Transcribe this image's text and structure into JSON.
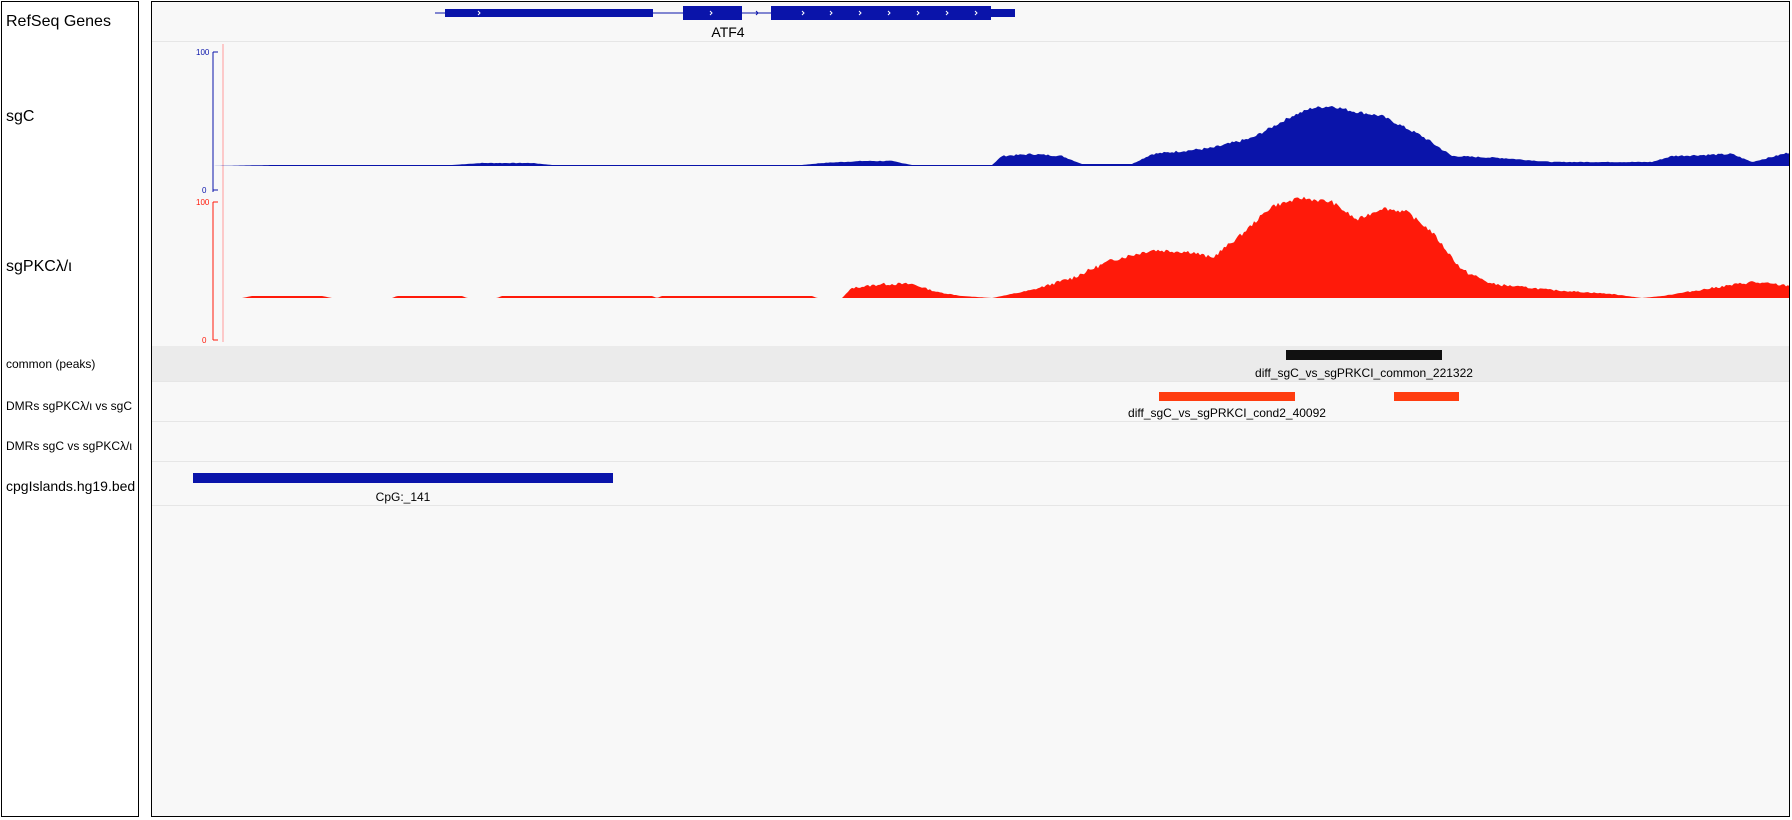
{
  "tracks": {
    "refseq": {
      "name": "RefSeq Genes",
      "gene_label": "ATF4"
    },
    "sgC": {
      "name": "sgC",
      "scale_max": "100",
      "scale_min": "0",
      "color": "#0a14aa"
    },
    "sgPKC": {
      "name": "sgPKCλ/ι",
      "scale_max": "100",
      "scale_min": "0",
      "color": "#ff1a0a"
    },
    "common": {
      "name": "common (peaks)",
      "feature_label": "diff_sgC_vs_sgPRKCI_common_221322",
      "color": "#111111"
    },
    "dmrs1": {
      "name": "DMRs sgPKCλ/ι vs sgC",
      "feature_label": "diff_sgC_vs_sgPRKCI_cond2_40092",
      "color": "#ff3d10"
    },
    "dmrs2": {
      "name": "DMRs sgC vs sgPKCλ/ι"
    },
    "cpg": {
      "name": "cpgIslands.hg19.bed",
      "feature_label": "CpG:_141",
      "color": "#0a14aa"
    }
  }
}
